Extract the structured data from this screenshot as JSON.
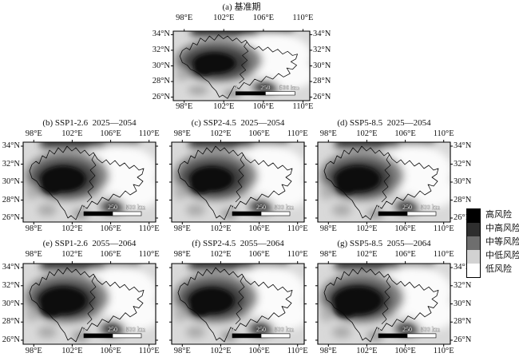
{
  "figure": {
    "axes": {
      "x_ticks": [
        "98°E",
        "102°E",
        "106°E",
        "110°E"
      ],
      "y_ticks": [
        "34°N",
        "32°N",
        "30°N",
        "28°N",
        "26°N"
      ]
    },
    "scalebar": {
      "labels": [
        "0",
        "250",
        "500 km"
      ]
    },
    "panels": [
      {
        "id": "a",
        "title": "(a) 基准期"
      },
      {
        "id": "b",
        "title": "(b) SSP1-2.6  2025—2054"
      },
      {
        "id": "c",
        "title": "(c) SSP2-4.5  2025—2054"
      },
      {
        "id": "d",
        "title": "(d) SSP5-8.5  2025—2054"
      },
      {
        "id": "e",
        "title": "(e) SSP1-2.6  2055—2064"
      },
      {
        "id": "f",
        "title": "(f) SSP2-4.5  2055—2064"
      },
      {
        "id": "g",
        "title": "(g) SSP5-8.5  2055—2064"
      }
    ],
    "legend": {
      "items": [
        {
          "label": "高风险",
          "color": "#000000"
        },
        {
          "label": "中高风险",
          "color": "#2e2e2e"
        },
        {
          "label": "中等风险",
          "color": "#6e6e6e"
        },
        {
          "label": "中低风险",
          "color": "#d2d2d2"
        },
        {
          "label": "低风险",
          "color": "#ffffff"
        }
      ]
    },
    "map_colors": {
      "background": "#d9d9d9",
      "low": "#fbfbfb",
      "medium": "#828282",
      "medium_high": "#3c3c3c",
      "high": "#0b0b0b"
    }
  }
}
